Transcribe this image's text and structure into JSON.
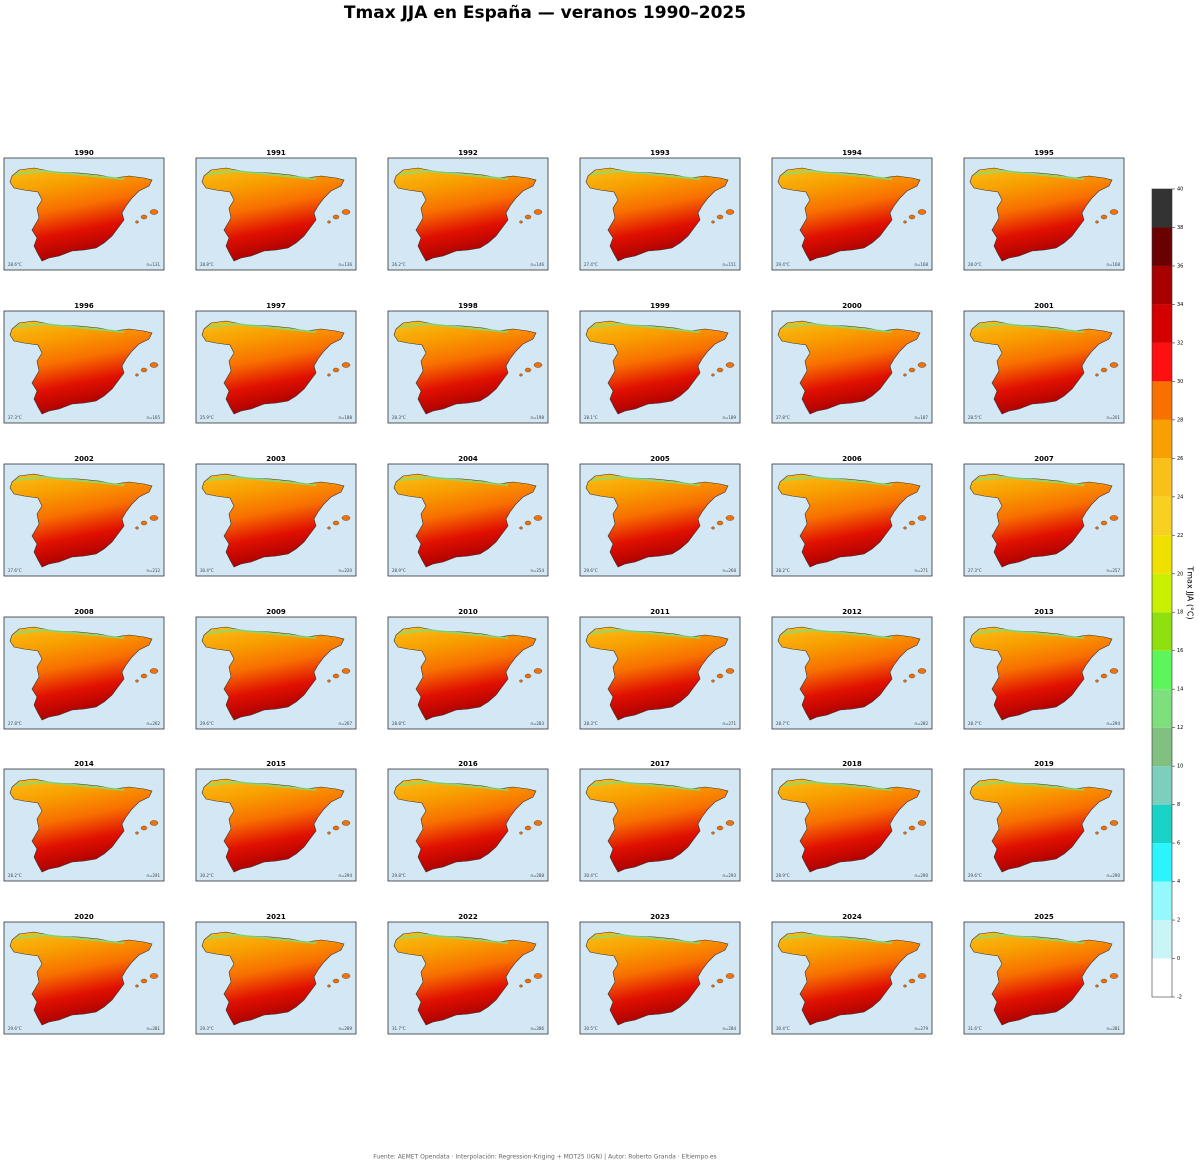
{
  "title": "Tmax JJA en España — veranos 1990–2025",
  "panels": [
    {
      "year": "1990",
      "mean": "28.6°C",
      "n": "n=131"
    },
    {
      "year": "1991",
      "mean": "28.8°C",
      "n": "n=136"
    },
    {
      "year": "1992",
      "mean": "26.2°C",
      "n": "n=146"
    },
    {
      "year": "1993",
      "mean": "27.4°C",
      "n": "n=151"
    },
    {
      "year": "1994",
      "mean": "29.4°C",
      "n": "n=168"
    },
    {
      "year": "1995",
      "mean": "28.0°C",
      "n": "n=168"
    },
    {
      "year": "1996",
      "mean": "27.3°C",
      "n": "n=165"
    },
    {
      "year": "1997",
      "mean": "25.9°C",
      "n": "n=188"
    },
    {
      "year": "1998",
      "mean": "28.3°C",
      "n": "n=198"
    },
    {
      "year": "1999",
      "mean": "28.1°C",
      "n": "n=189"
    },
    {
      "year": "2000",
      "mean": "27.8°C",
      "n": "n=187"
    },
    {
      "year": "2001",
      "mean": "28.5°C",
      "n": "n=201"
    },
    {
      "year": "2002",
      "mean": "27.6°C",
      "n": "n=212"
    },
    {
      "year": "2003",
      "mean": "30.4°C",
      "n": "n=220"
    },
    {
      "year": "2004",
      "mean": "28.9°C",
      "n": "n=254"
    },
    {
      "year": "2005",
      "mean": "29.6°C",
      "n": "n=268"
    },
    {
      "year": "2006",
      "mean": "28.2°C",
      "n": "n=271"
    },
    {
      "year": "2007",
      "mean": "27.3°C",
      "n": "n=257"
    },
    {
      "year": "2008",
      "mean": "27.8°C",
      "n": "n=262"
    },
    {
      "year": "2009",
      "mean": "29.6°C",
      "n": "n=267"
    },
    {
      "year": "2010",
      "mean": "28.8°C",
      "n": "n=283"
    },
    {
      "year": "2011",
      "mean": "28.3°C",
      "n": "n=271"
    },
    {
      "year": "2012",
      "mean": "28.7°C",
      "n": "n=282"
    },
    {
      "year": "2013",
      "mean": "28.7°C",
      "n": "n=294"
    },
    {
      "year": "2014",
      "mean": "28.2°C",
      "n": "n=291"
    },
    {
      "year": "2015",
      "mean": "30.2°C",
      "n": "n=294"
    },
    {
      "year": "2016",
      "mean": "29.8°C",
      "n": "n=288"
    },
    {
      "year": "2017",
      "mean": "30.4°C",
      "n": "n=293"
    },
    {
      "year": "2018",
      "mean": "28.9°C",
      "n": "n=290"
    },
    {
      "year": "2019",
      "mean": "29.6°C",
      "n": "n=290"
    },
    {
      "year": "2020",
      "mean": "29.6°C",
      "n": "n=281"
    },
    {
      "year": "2021",
      "mean": "29.3°C",
      "n": "n=289"
    },
    {
      "year": "2022",
      "mean": "31.7°C",
      "n": "n=286"
    },
    {
      "year": "2023",
      "mean": "30.5°C",
      "n": "n=284"
    },
    {
      "year": "2024",
      "mean": "30.4°C",
      "n": "n=279"
    },
    {
      "year": "2025",
      "mean": "31.6°C",
      "n": "n=281"
    }
  ],
  "colorbar": {
    "label": "Tmax JJA (°C)",
    "lim": [
      -2,
      40
    ],
    "ticks": [
      -2,
      0,
      2,
      4,
      6,
      8,
      10,
      12,
      14,
      16,
      18,
      20,
      22,
      24,
      26,
      28,
      30,
      32,
      34,
      36,
      38,
      40
    ],
    "colors": [
      "#ffffff",
      "#c9f5f7",
      "#95f8fc",
      "#2cf4fc",
      "#1ad3c8",
      "#7ccfbc",
      "#80c080",
      "#7de07d",
      "#5cf65c",
      "#90e010",
      "#c8f000",
      "#f0e000",
      "#f8d020",
      "#f8c018",
      "#f8a000",
      "#f87000",
      "#ff1010",
      "#d40000",
      "#a80000",
      "#6a0000",
      "#333333"
    ]
  },
  "footer": "Fuente: AEMET Opendata · Interpolación: Regression-Kriging + MDT25 (IGN) | Autor: Roberto Granda · Eltiempo.es"
}
